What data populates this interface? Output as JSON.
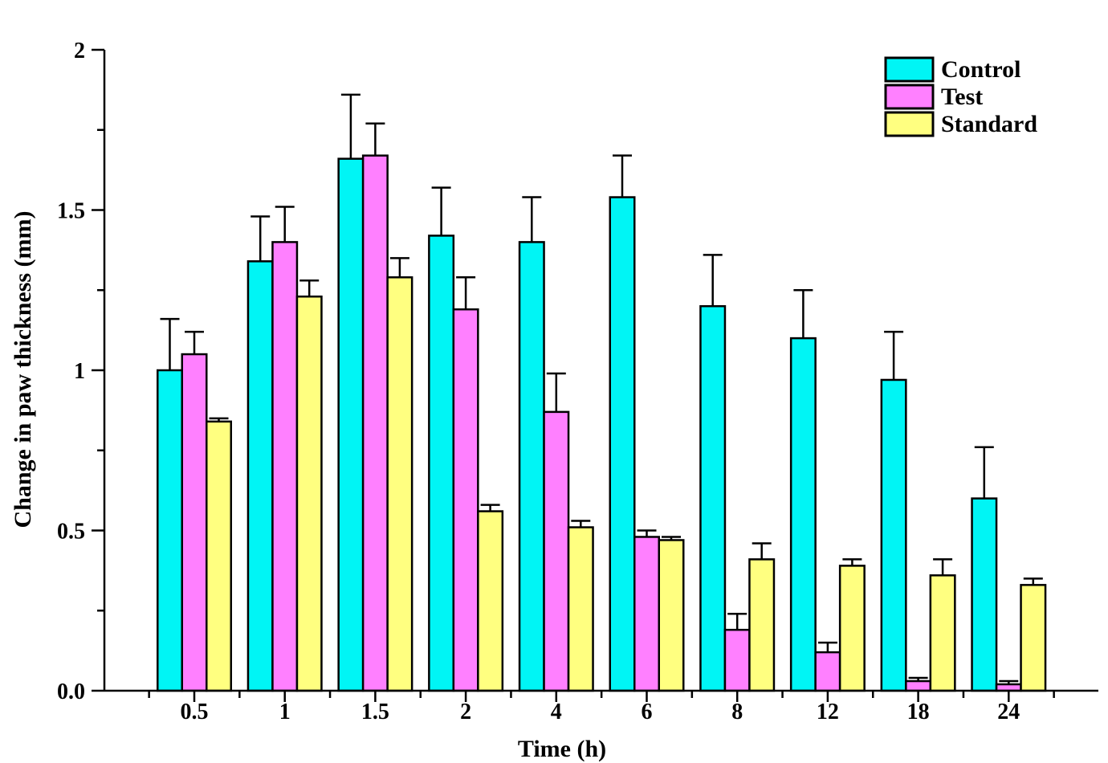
{
  "chart_data": {
    "type": "bar",
    "title": "",
    "xlabel": "Time (h)",
    "ylabel": "Change in paw thickness (mm)",
    "ylim": [
      0,
      2
    ],
    "yticks": [
      {
        "value": 0,
        "label": "0.0"
      },
      {
        "value": 0.5,
        "label": "0.5"
      },
      {
        "value": 1,
        "label": "1"
      },
      {
        "value": 1.5,
        "label": "1.5"
      },
      {
        "value": 2,
        "label": "2"
      }
    ],
    "categories": [
      "0.5",
      "1",
      "1.5",
      "2",
      "4",
      "6",
      "8",
      "12",
      "18",
      "24"
    ],
    "series": [
      {
        "name": "Control",
        "color": "#00f5f5",
        "values": [
          1.0,
          1.34,
          1.66,
          1.42,
          1.4,
          1.54,
          1.2,
          1.1,
          0.97,
          0.6
        ],
        "errors": [
          0.16,
          0.14,
          0.2,
          0.15,
          0.14,
          0.13,
          0.16,
          0.15,
          0.15,
          0.16
        ]
      },
      {
        "name": "Test",
        "color": "#ff80ff",
        "values": [
          1.05,
          1.4,
          1.67,
          1.19,
          0.87,
          0.48,
          0.19,
          0.12,
          0.03,
          0.02
        ],
        "errors": [
          0.07,
          0.11,
          0.1,
          0.1,
          0.12,
          0.02,
          0.05,
          0.03,
          0.01,
          0.01
        ]
      },
      {
        "name": "Standard",
        "color": "#ffff80",
        "values": [
          0.84,
          1.23,
          1.29,
          0.56,
          0.51,
          0.47,
          0.41,
          0.39,
          0.36,
          0.33
        ],
        "errors": [
          0.01,
          0.05,
          0.06,
          0.02,
          0.02,
          0.01,
          0.05,
          0.02,
          0.05,
          0.02
        ]
      }
    ],
    "legend": "top-right",
    "grid": false
  }
}
